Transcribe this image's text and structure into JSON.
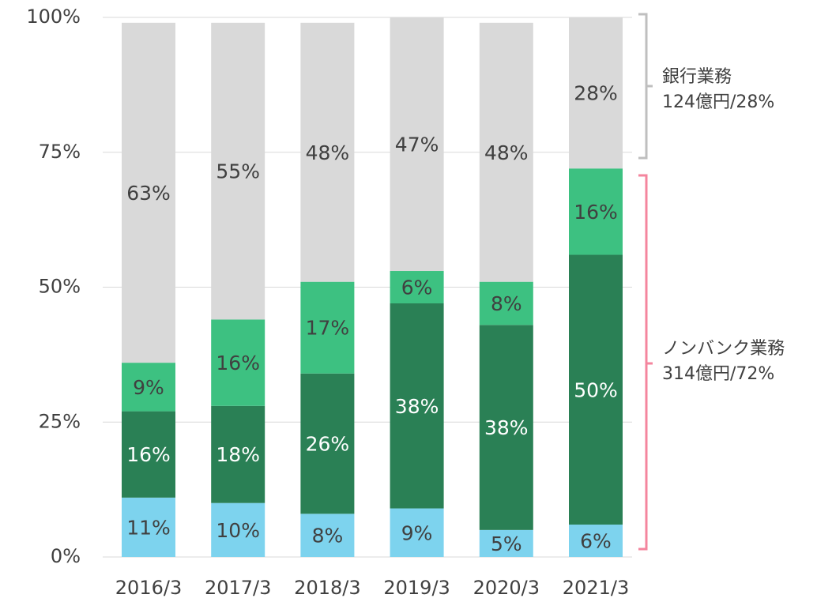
{
  "chart_data": {
    "type": "stacked_bar",
    "categories": [
      "2016/3",
      "2017/3",
      "2018/3",
      "2019/3",
      "2020/3",
      "2021/3"
    ],
    "series": [
      {
        "color": "#7dd3ee",
        "label_color": "#404040",
        "values": [
          11,
          10,
          8,
          9,
          5,
          6
        ],
        "value_labels": [
          "11%",
          "10%",
          "8%",
          "9%",
          "5%",
          "6%"
        ]
      },
      {
        "color": "#2a8055",
        "label_color": "#ffffff",
        "values": [
          16,
          18,
          26,
          38,
          38,
          50
        ],
        "value_labels": [
          "16%",
          "18%",
          "26%",
          "38%",
          "38%",
          "50%"
        ]
      },
      {
        "color": "#3dc181",
        "label_color": "#404040",
        "values": [
          9,
          16,
          17,
          6,
          8,
          16
        ],
        "value_labels": [
          "9%",
          "16%",
          "17%",
          "6%",
          "8%",
          "16%"
        ]
      },
      {
        "color": "#d9d9d9",
        "label_color": "#404040",
        "values": [
          63,
          55,
          48,
          47,
          48,
          28
        ],
        "value_labels": [
          "63%",
          "55%",
          "48%",
          "47%",
          "48%",
          "28%"
        ]
      }
    ],
    "ylim": [
      0,
      100
    ],
    "yticks": [
      {
        "value": 0,
        "label": "0%"
      },
      {
        "value": 25,
        "label": "25%"
      },
      {
        "value": 50,
        "label": "50%"
      },
      {
        "value": 75,
        "label": "75%"
      },
      {
        "value": 100,
        "label": "100%"
      }
    ],
    "grid": true,
    "annotations": [
      {
        "lines": [
          "銀行業務",
          "124億円/28%"
        ]
      },
      {
        "lines": [
          "ノンバンク業務",
          "314億円/72%"
        ]
      }
    ]
  }
}
